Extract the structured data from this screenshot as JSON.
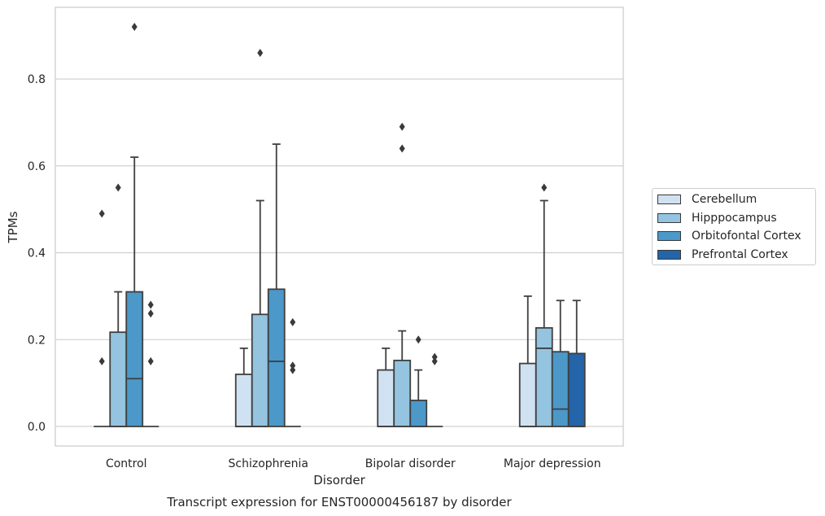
{
  "caption": "Transcript expression for ENST00000456187 by disorder",
  "chart_data": {
    "type": "box",
    "xlabel": "Disorder",
    "ylabel": "TPMs",
    "ylim": [
      -0.045,
      0.965
    ],
    "yticks": [
      "0.0",
      "0.2",
      "0.4",
      "0.6",
      "0.8"
    ],
    "ytick_values": [
      0.0,
      0.2,
      0.4,
      0.6,
      0.8
    ],
    "grid": true,
    "legend_position": "right",
    "categories": [
      "Control",
      "Schizophrenia",
      "Bipolar disorder",
      "Major depression"
    ],
    "series": [
      {
        "name": "Cerebellum",
        "color": "#d0e1f2",
        "boxes": [
          {
            "category": "Control",
            "q1": 0.0,
            "median": 0.0,
            "q3": 0.0,
            "whisker_low": 0.0,
            "whisker_high": 0.0,
            "outliers": [
              0.15,
              0.49
            ]
          },
          {
            "category": "Schizophrenia",
            "q1": 0.0,
            "median": 0.0,
            "q3": 0.12,
            "whisker_low": 0.0,
            "whisker_high": 0.18,
            "outliers": []
          },
          {
            "category": "Bipolar disorder",
            "q1": 0.0,
            "median": 0.0,
            "q3": 0.13,
            "whisker_low": 0.0,
            "whisker_high": 0.18,
            "outliers": []
          },
          {
            "category": "Major depression",
            "q1": 0.0,
            "median": 0.0,
            "q3": 0.145,
            "whisker_low": 0.0,
            "whisker_high": 0.3,
            "outliers": []
          }
        ]
      },
      {
        "name": "Hipppocampus",
        "color": "#94c4df",
        "boxes": [
          {
            "category": "Control",
            "q1": 0.0,
            "median": 0.0,
            "q3": 0.217,
            "whisker_low": 0.0,
            "whisker_high": 0.31,
            "outliers": [
              0.55
            ]
          },
          {
            "category": "Schizophrenia",
            "q1": 0.0,
            "median": 0.0,
            "q3": 0.258,
            "whisker_low": 0.0,
            "whisker_high": 0.52,
            "outliers": [
              0.86
            ]
          },
          {
            "category": "Bipolar disorder",
            "q1": 0.0,
            "median": 0.0,
            "q3": 0.152,
            "whisker_low": 0.0,
            "whisker_high": 0.22,
            "outliers": [
              0.64,
              0.69
            ]
          },
          {
            "category": "Major depression",
            "q1": 0.0,
            "median": 0.18,
            "q3": 0.227,
            "whisker_low": 0.0,
            "whisker_high": 0.52,
            "outliers": [
              0.55
            ]
          }
        ]
      },
      {
        "name": "Orbitofontal Cortex",
        "color": "#4b98c9",
        "boxes": [
          {
            "category": "Control",
            "q1": 0.0,
            "median": 0.11,
            "q3": 0.31,
            "whisker_low": 0.0,
            "whisker_high": 0.62,
            "outliers": [
              0.92
            ]
          },
          {
            "category": "Schizophrenia",
            "q1": 0.0,
            "median": 0.15,
            "q3": 0.316,
            "whisker_low": 0.0,
            "whisker_high": 0.65,
            "outliers": []
          },
          {
            "category": "Bipolar disorder",
            "q1": 0.0,
            "median": 0.0,
            "q3": 0.06,
            "whisker_low": 0.0,
            "whisker_high": 0.13,
            "outliers": [
              0.2
            ]
          },
          {
            "category": "Major depression",
            "q1": 0.0,
            "median": 0.04,
            "q3": 0.172,
            "whisker_low": 0.0,
            "whisker_high": 0.29,
            "outliers": []
          }
        ]
      },
      {
        "name": "Prefrontal Cortex",
        "color": "#2464a8",
        "boxes": [
          {
            "category": "Control",
            "q1": 0.0,
            "median": 0.0,
            "q3": 0.0,
            "whisker_low": 0.0,
            "whisker_high": 0.0,
            "outliers": [
              0.15,
              0.26,
              0.28
            ]
          },
          {
            "category": "Schizophrenia",
            "q1": 0.0,
            "median": 0.0,
            "q3": 0.0,
            "whisker_low": 0.0,
            "whisker_high": 0.0,
            "outliers": [
              0.13,
              0.14,
              0.24
            ]
          },
          {
            "category": "Bipolar disorder",
            "q1": 0.0,
            "median": 0.0,
            "q3": 0.0,
            "whisker_low": 0.0,
            "whisker_high": 0.0,
            "outliers": [
              0.15,
              0.16
            ]
          },
          {
            "category": "Major depression",
            "q1": 0.0,
            "median": 0.0,
            "q3": 0.168,
            "whisker_low": 0.0,
            "whisker_high": 0.29,
            "outliers": []
          }
        ]
      }
    ]
  }
}
